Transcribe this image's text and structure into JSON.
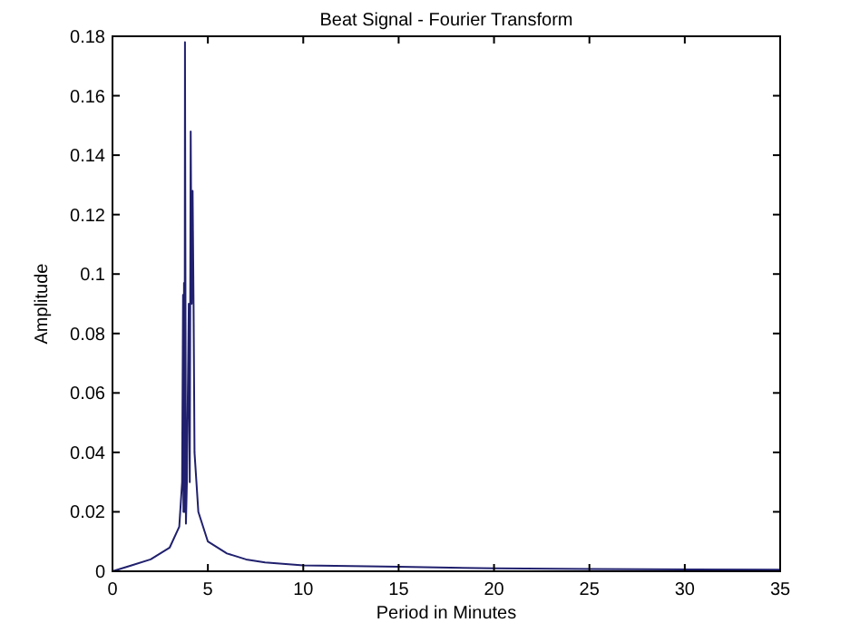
{
  "chart_data": {
    "type": "line",
    "title": "Beat Signal - Fourier Transform",
    "xlabel": "Period in Minutes",
    "ylabel": "Amplitude",
    "x": [
      0,
      0.5,
      1,
      2,
      3,
      3.5,
      3.65,
      3.7,
      3.72,
      3.75,
      3.78,
      3.8,
      3.85,
      3.9,
      4.0,
      4.05,
      4.1,
      4.15,
      4.2,
      4.25,
      4.3,
      4.5,
      5,
      6,
      7,
      8,
      10,
      15,
      20,
      25,
      35
    ],
    "series": [
      {
        "color": "#20206e",
        "values": [
          0,
          0.001,
          0.002,
          0.004,
          0.008,
          0.015,
          0.03,
          0.093,
          0.02,
          0.097,
          0.02,
          0.178,
          0.016,
          0.03,
          0.09,
          0.03,
          0.148,
          0.09,
          0.128,
          0.09,
          0.04,
          0.02,
          0.01,
          0.006,
          0.004,
          0.003,
          0.002,
          0.0015,
          0.001,
          0.0008,
          0.0005
        ]
      }
    ],
    "xlim": [
      0,
      35
    ],
    "xticks": [
      0,
      5,
      10,
      15,
      20,
      25,
      30,
      35
    ],
    "ylim": [
      0,
      0.18
    ],
    "yticks": [
      0,
      0.02,
      0.04,
      0.06,
      0.08,
      0.1,
      0.12,
      0.14,
      0.16,
      0.18
    ],
    "grid": false,
    "marker": "none",
    "line_style": "solid"
  }
}
